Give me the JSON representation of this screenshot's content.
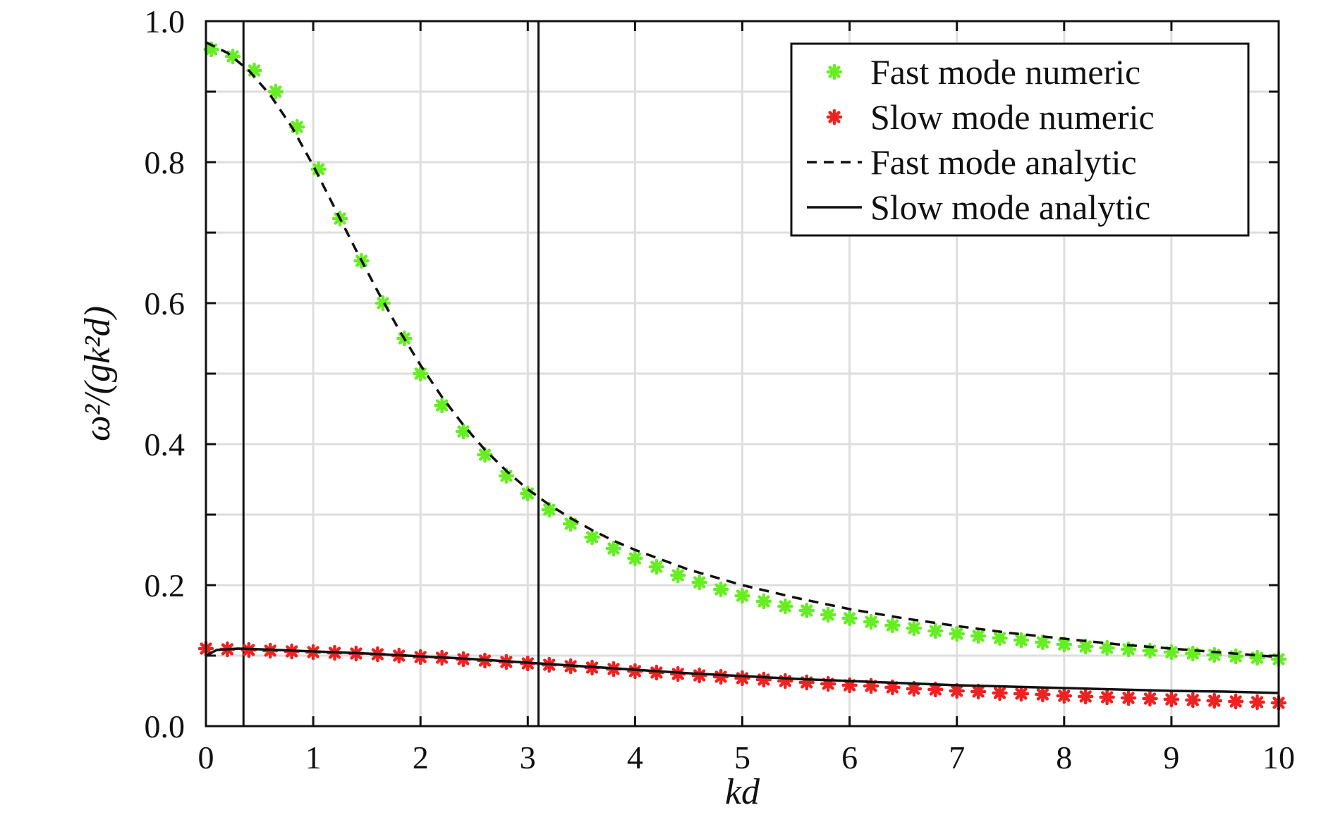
{
  "chart_data": {
    "type": "line",
    "title": "",
    "xlabel": "kd",
    "ylabel": "ω²/(gk²d)",
    "xlim": [
      0,
      10
    ],
    "ylim": [
      0,
      1
    ],
    "xticks": [
      "0",
      "1",
      "2",
      "3",
      "4",
      "5",
      "6",
      "7",
      "8",
      "9",
      "10"
    ],
    "yticks": [
      "0.0",
      "0.2",
      "0.4",
      "0.6",
      "0.8",
      "1.0"
    ],
    "grid": true,
    "legend_position": "top-right",
    "vertical_lines_x": [
      0.35,
      3.1
    ],
    "series": [
      {
        "name": "Fast mode numeric",
        "style": "markers",
        "color": "#66ee22",
        "x": [
          0.05,
          0.25,
          0.45,
          0.65,
          0.85,
          1.05,
          1.25,
          1.45,
          1.65,
          1.85,
          2.0,
          2.2,
          2.4,
          2.6,
          2.8,
          3.0,
          3.2,
          3.4,
          3.6,
          3.8,
          4.0,
          4.2,
          4.4,
          4.6,
          4.8,
          5.0,
          5.2,
          5.4,
          5.6,
          5.8,
          6.0,
          6.2,
          6.4,
          6.6,
          6.8,
          7.0,
          7.2,
          7.4,
          7.6,
          7.8,
          8.0,
          8.2,
          8.4,
          8.6,
          8.8,
          9.0,
          9.2,
          9.4,
          9.6,
          9.8,
          10.0
        ],
        "y": [
          0.96,
          0.95,
          0.93,
          0.9,
          0.85,
          0.79,
          0.72,
          0.66,
          0.6,
          0.55,
          0.5,
          0.455,
          0.418,
          0.385,
          0.355,
          0.33,
          0.307,
          0.287,
          0.268,
          0.252,
          0.238,
          0.226,
          0.214,
          0.204,
          0.194,
          0.185,
          0.177,
          0.17,
          0.164,
          0.158,
          0.153,
          0.148,
          0.143,
          0.139,
          0.135,
          0.131,
          0.128,
          0.125,
          0.122,
          0.119,
          0.116,
          0.113,
          0.111,
          0.109,
          0.107,
          0.105,
          0.103,
          0.101,
          0.099,
          0.097,
          0.095
        ]
      },
      {
        "name": "Slow mode numeric",
        "style": "markers",
        "color": "#ee2222",
        "x": [
          0.0,
          0.2,
          0.4,
          0.6,
          0.8,
          1.0,
          1.2,
          1.4,
          1.6,
          1.8,
          2.0,
          2.2,
          2.4,
          2.6,
          2.8,
          3.0,
          3.2,
          3.4,
          3.6,
          3.8,
          4.0,
          4.2,
          4.4,
          4.6,
          4.8,
          5.0,
          5.2,
          5.4,
          5.6,
          5.8,
          6.0,
          6.2,
          6.4,
          6.6,
          6.8,
          7.0,
          7.2,
          7.4,
          7.6,
          7.8,
          8.0,
          8.2,
          8.4,
          8.6,
          8.8,
          9.0,
          9.2,
          9.4,
          9.6,
          9.8,
          10.0
        ],
        "y": [
          0.11,
          0.109,
          0.108,
          0.107,
          0.106,
          0.105,
          0.104,
          0.103,
          0.102,
          0.1,
          0.098,
          0.097,
          0.095,
          0.093,
          0.091,
          0.089,
          0.087,
          0.085,
          0.083,
          0.081,
          0.078,
          0.076,
          0.074,
          0.072,
          0.07,
          0.068,
          0.066,
          0.064,
          0.062,
          0.06,
          0.058,
          0.057,
          0.055,
          0.053,
          0.052,
          0.05,
          0.049,
          0.047,
          0.046,
          0.045,
          0.043,
          0.042,
          0.041,
          0.04,
          0.039,
          0.038,
          0.037,
          0.036,
          0.035,
          0.034,
          0.033
        ]
      },
      {
        "name": "Fast mode analytic",
        "style": "dashed",
        "color": "#111111",
        "x": [
          0.0,
          0.2,
          0.4,
          0.6,
          0.8,
          1.0,
          1.2,
          1.4,
          1.6,
          1.8,
          2.0,
          2.2,
          2.4,
          2.6,
          2.8,
          3.0,
          3.2,
          3.4,
          3.6,
          3.8,
          4.0,
          4.5,
          5.0,
          5.5,
          6.0,
          6.5,
          7.0,
          7.5,
          8.0,
          8.5,
          9.0,
          9.5,
          10.0
        ],
        "y": [
          0.97,
          0.955,
          0.93,
          0.895,
          0.85,
          0.795,
          0.735,
          0.675,
          0.617,
          0.562,
          0.512,
          0.467,
          0.427,
          0.392,
          0.362,
          0.336,
          0.314,
          0.295,
          0.278,
          0.263,
          0.25,
          0.222,
          0.2,
          0.182,
          0.166,
          0.153,
          0.142,
          0.132,
          0.124,
          0.116,
          0.11,
          0.104,
          0.098
        ]
      },
      {
        "name": "Slow mode analytic",
        "style": "solid",
        "color": "#111111",
        "x": [
          0.0,
          0.1,
          0.3,
          0.5,
          1.0,
          1.5,
          2.0,
          2.5,
          3.0,
          3.5,
          4.0,
          4.5,
          5.0,
          5.5,
          6.0,
          6.5,
          7.0,
          7.5,
          8.0,
          8.5,
          9.0,
          9.5,
          10.0
        ],
        "y": [
          0.1,
          0.108,
          0.11,
          0.109,
          0.106,
          0.103,
          0.099,
          0.095,
          0.09,
          0.085,
          0.08,
          0.075,
          0.071,
          0.067,
          0.064,
          0.061,
          0.058,
          0.056,
          0.054,
          0.052,
          0.05,
          0.049,
          0.047
        ]
      }
    ]
  }
}
